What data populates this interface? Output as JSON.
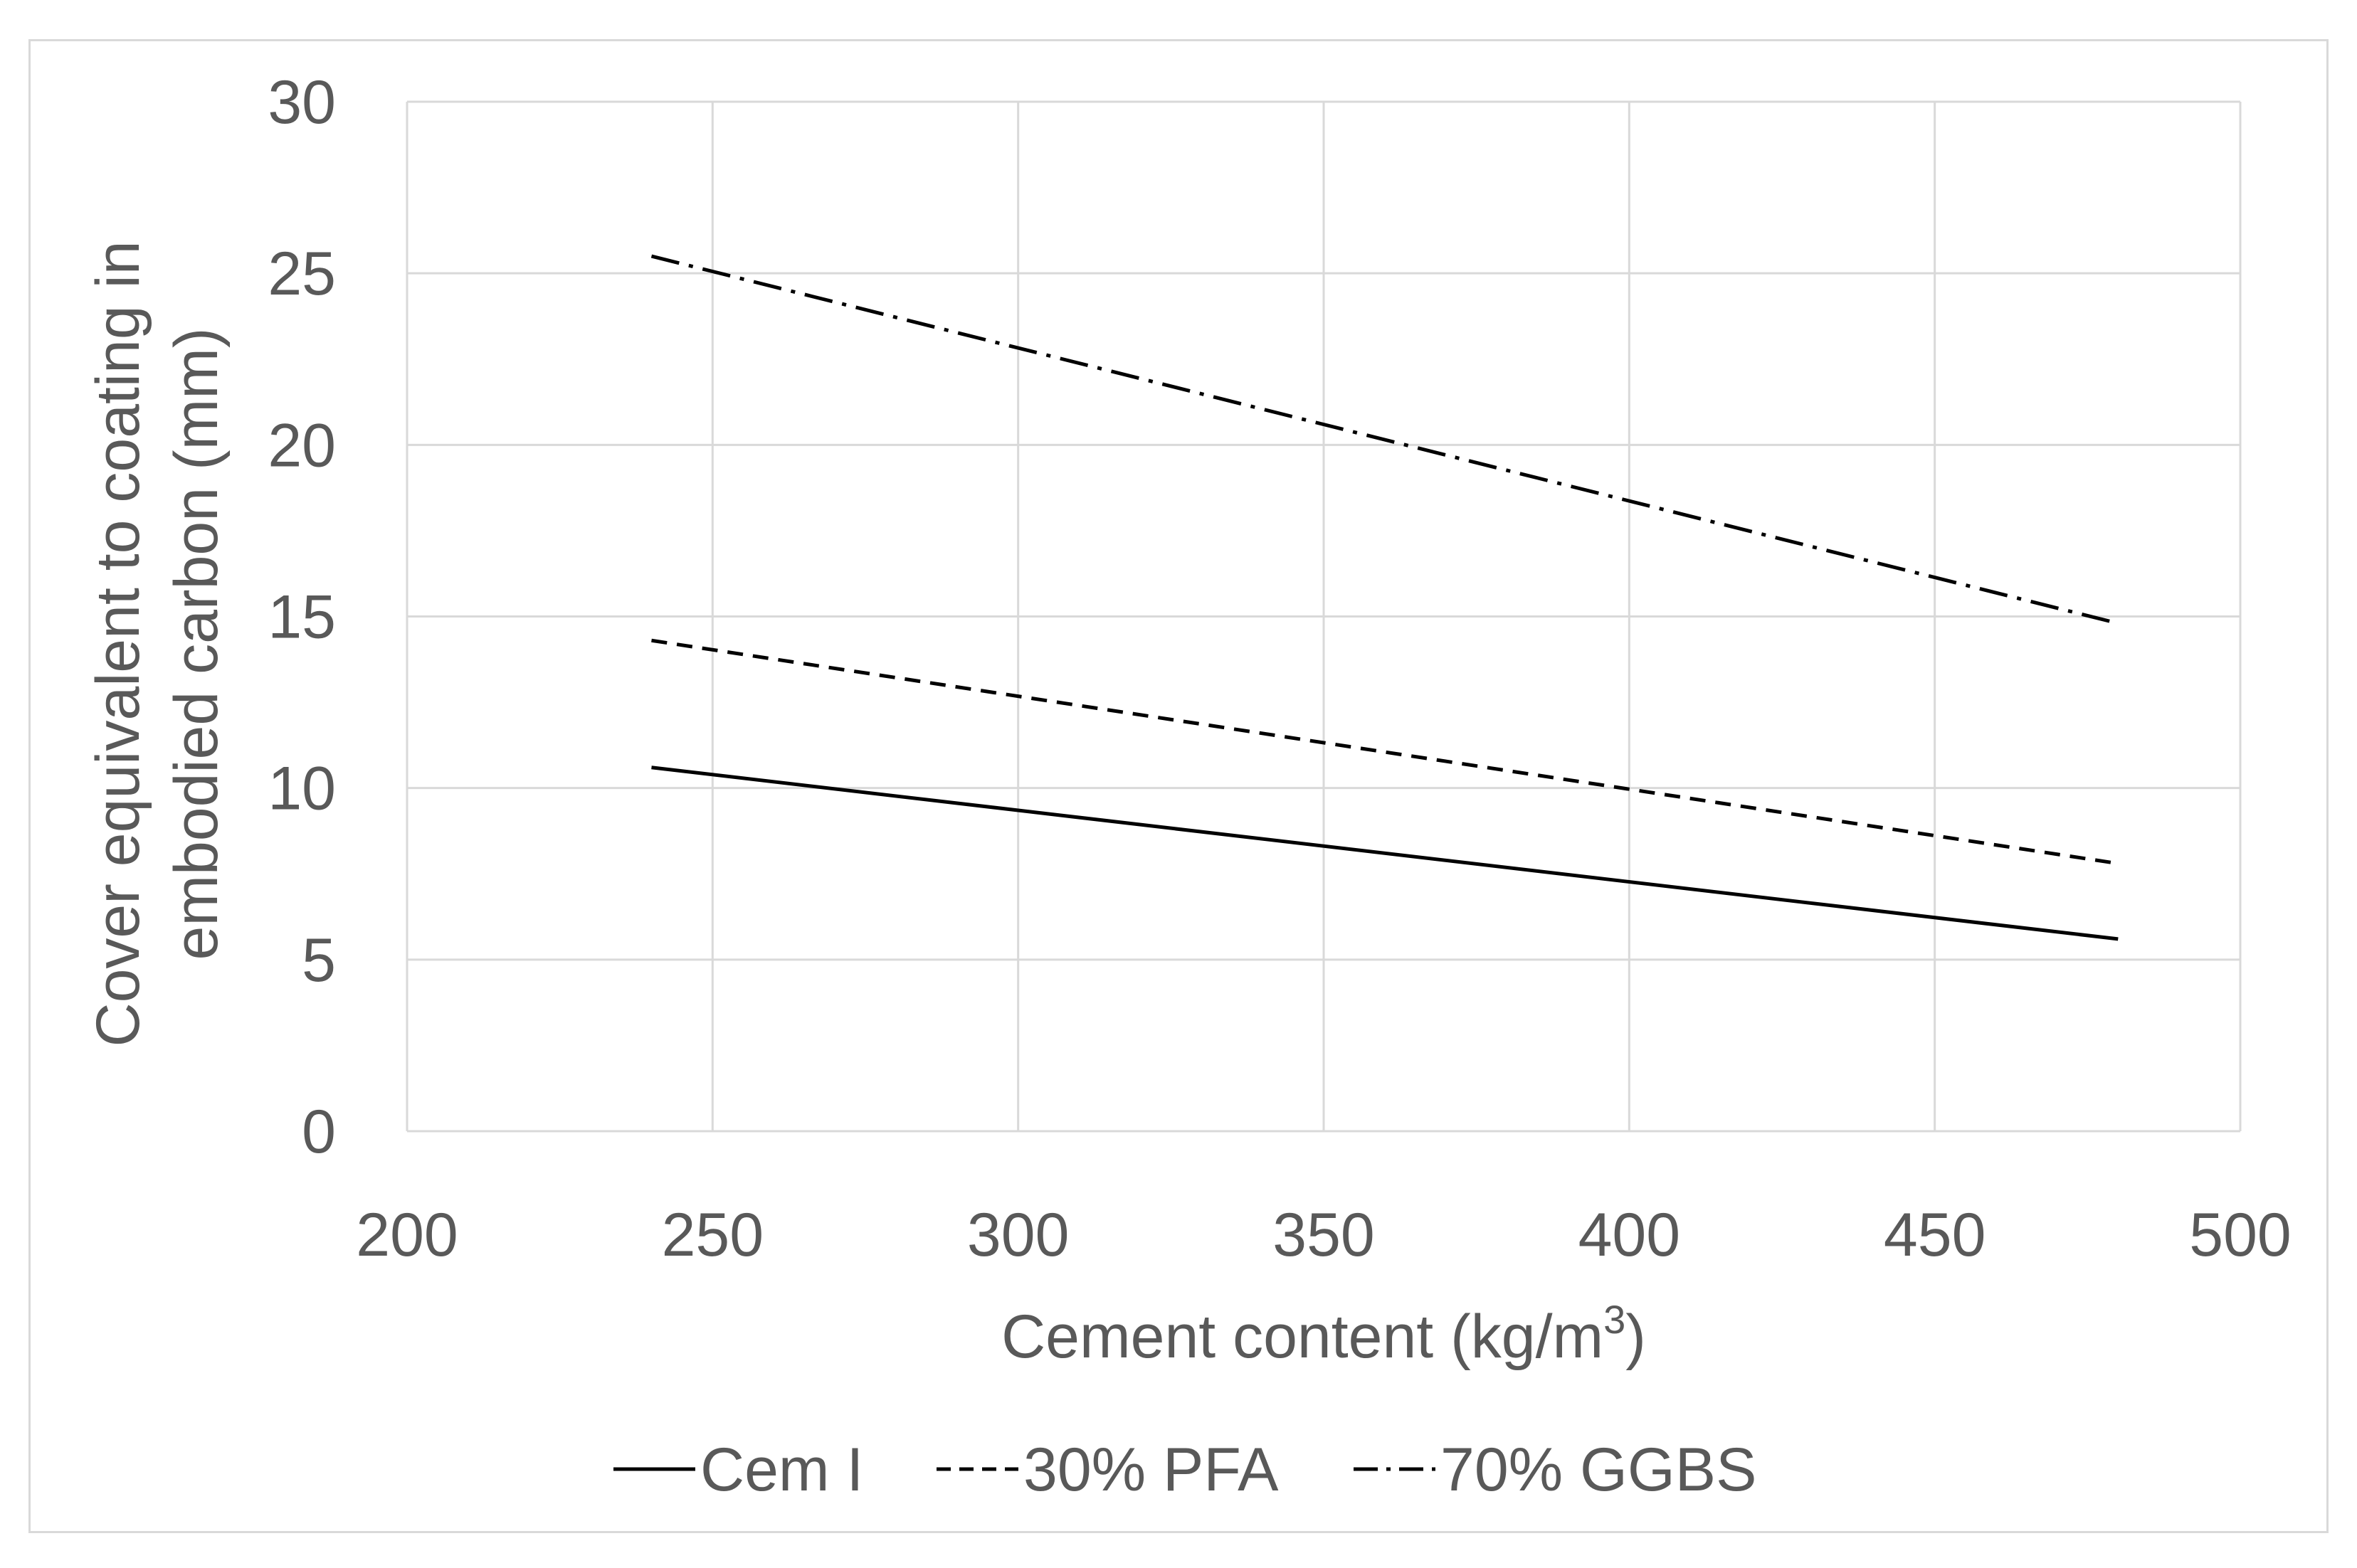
{
  "chart_data": {
    "type": "line",
    "title": "",
    "xlabel": "Cement content (kg/m",
    "xlabel_superscript": "3",
    "xlabel_suffix": ")",
    "ylabel_line1": "Cover equivalent to coating in",
    "ylabel_line2": "embodied carbon (mm)",
    "xlim": [
      200,
      500
    ],
    "ylim": [
      0,
      30
    ],
    "x_ticks": [
      200,
      250,
      300,
      350,
      400,
      450,
      500
    ],
    "y_ticks": [
      0,
      5,
      10,
      15,
      20,
      25,
      30
    ],
    "grid": true,
    "legend_position": "bottom",
    "series": [
      {
        "name": "Cem I",
        "style": "solid",
        "x": [
          240,
          480
        ],
        "y": [
          10.6,
          5.6
        ]
      },
      {
        "name": "30% PFA",
        "style": "dashed",
        "x": [
          240,
          480
        ],
        "y": [
          14.3,
          7.8
        ]
      },
      {
        "name": "70% GGBS",
        "style": "dashdot",
        "x": [
          240,
          480
        ],
        "y": [
          25.5,
          14.8
        ]
      }
    ],
    "colors": {
      "line": "#000000",
      "grid": "#d9d9d9",
      "text": "#595959"
    }
  }
}
